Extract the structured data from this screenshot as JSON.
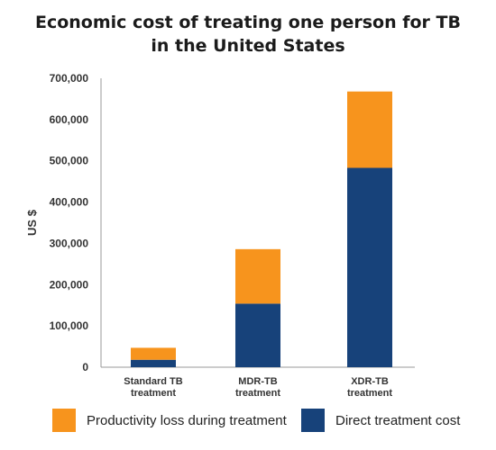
{
  "title_lines": [
    "Economic cost of treating one person for TB",
    "in the United States"
  ],
  "colors": {
    "productivity": "#f7941d",
    "direct": "#17427a",
    "axis": "#999999",
    "text": "#333333"
  },
  "legend": {
    "productivity_label": "Productivity loss during treatment",
    "direct_label": "Direct treatment cost"
  },
  "chart_data": {
    "type": "bar",
    "stacked": true,
    "title": "Economic cost of treating one person for TB in the United States",
    "ylabel": "US $",
    "ylim": [
      0,
      700000
    ],
    "yticks": [
      0,
      100000,
      200000,
      300000,
      400000,
      500000,
      600000,
      700000
    ],
    "ytick_labels": [
      "0",
      "100,000",
      "200,000",
      "300,000",
      "400,000",
      "500,000",
      "600,000",
      "700,000"
    ],
    "categories": [
      [
        "Standard TB",
        "treatment"
      ],
      [
        "MDR-TB",
        "treatment"
      ],
      [
        "XDR-TB",
        "treatment"
      ]
    ],
    "series": [
      {
        "name": "Direct treatment cost",
        "color": "#17427a",
        "values": [
          18000,
          154000,
          483000
        ]
      },
      {
        "name": "Productivity loss during treatment",
        "color": "#f7941d",
        "values": [
          29000,
          132000,
          185000
        ]
      }
    ],
    "grid": false,
    "legend_position": "bottom"
  }
}
